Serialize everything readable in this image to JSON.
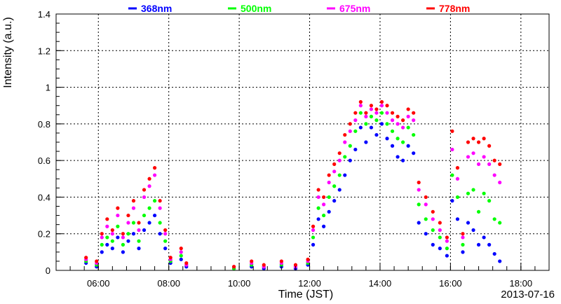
{
  "chart_data": {
    "type": "scatter",
    "title": "",
    "xlabel": "Time (JST)",
    "ylabel": "Intensity (a.u.)",
    "date_label": "2013-07-16",
    "x_range_hours": [
      4.8,
      18.8
    ],
    "x_ticks": [
      "06:00",
      "08:00",
      "10:00",
      "12:00",
      "14:00",
      "16:00",
      "18:00"
    ],
    "ylim": [
      0,
      1.4
    ],
    "y_ticks": [
      "0",
      "0.2",
      "0.4",
      "0.6",
      "0.8",
      "1",
      "1.2",
      "1.4"
    ],
    "grid": true,
    "legend_position": "top",
    "series": [
      {
        "name": "368nm",
        "color": "#0000ff",
        "points": [
          [
            5.65,
            0.04
          ],
          [
            5.95,
            0.02
          ],
          [
            6.1,
            0.1
          ],
          [
            6.25,
            0.14
          ],
          [
            6.4,
            0.12
          ],
          [
            6.55,
            0.18
          ],
          [
            6.7,
            0.1
          ],
          [
            6.85,
            0.16
          ],
          [
            7.0,
            0.2
          ],
          [
            7.15,
            0.12
          ],
          [
            7.3,
            0.22
          ],
          [
            7.45,
            0.26
          ],
          [
            7.6,
            0.3
          ],
          [
            7.75,
            0.2
          ],
          [
            7.9,
            0.12
          ],
          [
            8.05,
            0.04
          ],
          [
            8.35,
            0.06
          ],
          [
            8.5,
            0.02
          ],
          [
            9.85,
            0.01
          ],
          [
            10.35,
            0.02
          ],
          [
            10.7,
            0.01
          ],
          [
            11.2,
            0.02
          ],
          [
            11.6,
            0.01
          ],
          [
            11.95,
            0.03
          ],
          [
            12.1,
            0.14
          ],
          [
            12.25,
            0.28
          ],
          [
            12.4,
            0.24
          ],
          [
            12.55,
            0.32
          ],
          [
            12.7,
            0.38
          ],
          [
            12.85,
            0.44
          ],
          [
            13.0,
            0.52
          ],
          [
            13.15,
            0.6
          ],
          [
            13.3,
            0.66
          ],
          [
            13.45,
            0.78
          ],
          [
            13.6,
            0.7
          ],
          [
            13.75,
            0.78
          ],
          [
            13.9,
            0.74
          ],
          [
            14.05,
            0.8
          ],
          [
            14.2,
            0.72
          ],
          [
            14.35,
            0.68
          ],
          [
            14.5,
            0.62
          ],
          [
            14.65,
            0.6
          ],
          [
            14.8,
            0.68
          ],
          [
            14.95,
            0.64
          ],
          [
            15.1,
            0.26
          ],
          [
            15.3,
            0.2
          ],
          [
            15.5,
            0.14
          ],
          [
            15.7,
            0.12
          ],
          [
            15.9,
            0.08
          ],
          [
            16.05,
            0.38
          ],
          [
            16.2,
            0.28
          ],
          [
            16.35,
            0.1
          ],
          [
            16.5,
            0.26
          ],
          [
            16.65,
            0.22
          ],
          [
            16.8,
            0.14
          ],
          [
            16.95,
            0.18
          ],
          [
            17.1,
            0.14
          ],
          [
            17.25,
            0.09
          ],
          [
            17.4,
            0.05
          ]
        ]
      },
      {
        "name": "500nm",
        "color": "#00ff00",
        "points": [
          [
            5.65,
            0.05
          ],
          [
            5.95,
            0.03
          ],
          [
            6.1,
            0.14
          ],
          [
            6.25,
            0.18
          ],
          [
            6.4,
            0.16
          ],
          [
            6.55,
            0.24
          ],
          [
            6.7,
            0.14
          ],
          [
            6.85,
            0.2
          ],
          [
            7.0,
            0.26
          ],
          [
            7.15,
            0.16
          ],
          [
            7.3,
            0.3
          ],
          [
            7.45,
            0.34
          ],
          [
            7.6,
            0.38
          ],
          [
            7.75,
            0.26
          ],
          [
            7.9,
            0.16
          ],
          [
            8.05,
            0.05
          ],
          [
            8.35,
            0.08
          ],
          [
            8.5,
            0.03
          ],
          [
            9.85,
            0.01
          ],
          [
            10.35,
            0.03
          ],
          [
            10.7,
            0.02
          ],
          [
            11.2,
            0.03
          ],
          [
            11.6,
            0.02
          ],
          [
            11.95,
            0.04
          ],
          [
            12.1,
            0.18
          ],
          [
            12.25,
            0.34
          ],
          [
            12.4,
            0.3
          ],
          [
            12.55,
            0.4
          ],
          [
            12.7,
            0.46
          ],
          [
            12.85,
            0.52
          ],
          [
            13.0,
            0.62
          ],
          [
            13.15,
            0.68
          ],
          [
            13.3,
            0.76
          ],
          [
            13.45,
            0.86
          ],
          [
            13.6,
            0.8
          ],
          [
            13.75,
            0.84
          ],
          [
            13.9,
            0.82
          ],
          [
            14.05,
            0.86
          ],
          [
            14.2,
            0.8
          ],
          [
            14.35,
            0.76
          ],
          [
            14.5,
            0.72
          ],
          [
            14.65,
            0.7
          ],
          [
            14.8,
            0.78
          ],
          [
            14.95,
            0.74
          ],
          [
            15.1,
            0.36
          ],
          [
            15.3,
            0.28
          ],
          [
            15.5,
            0.22
          ],
          [
            15.7,
            0.18
          ],
          [
            15.9,
            0.12
          ],
          [
            16.05,
            0.52
          ],
          [
            16.2,
            0.4
          ],
          [
            16.35,
            0.14
          ],
          [
            16.5,
            0.42
          ],
          [
            16.65,
            0.44
          ],
          [
            16.8,
            0.32
          ],
          [
            16.95,
            0.42
          ],
          [
            17.1,
            0.38
          ],
          [
            17.25,
            0.28
          ],
          [
            17.4,
            0.26
          ]
        ]
      },
      {
        "name": "675nm",
        "color": "#ff00ff",
        "points": [
          [
            5.65,
            0.06
          ],
          [
            5.95,
            0.04
          ],
          [
            6.1,
            0.18
          ],
          [
            6.25,
            0.24
          ],
          [
            6.4,
            0.2
          ],
          [
            6.55,
            0.3
          ],
          [
            6.7,
            0.18
          ],
          [
            6.85,
            0.26
          ],
          [
            7.0,
            0.34
          ],
          [
            7.15,
            0.22
          ],
          [
            7.3,
            0.4
          ],
          [
            7.45,
            0.46
          ],
          [
            7.6,
            0.52
          ],
          [
            7.75,
            0.34
          ],
          [
            7.9,
            0.2
          ],
          [
            8.05,
            0.06
          ],
          [
            8.35,
            0.1
          ],
          [
            8.5,
            0.03
          ],
          [
            9.85,
            0.02
          ],
          [
            10.35,
            0.04
          ],
          [
            10.7,
            0.02
          ],
          [
            11.2,
            0.04
          ],
          [
            11.6,
            0.02
          ],
          [
            11.95,
            0.05
          ],
          [
            12.1,
            0.22
          ],
          [
            12.25,
            0.4
          ],
          [
            12.4,
            0.36
          ],
          [
            12.55,
            0.48
          ],
          [
            12.7,
            0.54
          ],
          [
            12.85,
            0.6
          ],
          [
            13.0,
            0.7
          ],
          [
            13.15,
            0.76
          ],
          [
            13.3,
            0.82
          ],
          [
            13.45,
            0.9
          ],
          [
            13.6,
            0.84
          ],
          [
            13.75,
            0.88
          ],
          [
            13.9,
            0.86
          ],
          [
            14.05,
            0.9
          ],
          [
            14.2,
            0.86
          ],
          [
            14.35,
            0.82
          ],
          [
            14.5,
            0.8
          ],
          [
            14.65,
            0.78
          ],
          [
            14.8,
            0.84
          ],
          [
            14.95,
            0.82
          ],
          [
            15.1,
            0.44
          ],
          [
            15.3,
            0.36
          ],
          [
            15.5,
            0.28
          ],
          [
            15.7,
            0.22
          ],
          [
            15.9,
            0.16
          ],
          [
            16.05,
            0.66
          ],
          [
            16.2,
            0.5
          ],
          [
            16.35,
            0.18
          ],
          [
            16.5,
            0.62
          ],
          [
            16.65,
            0.64
          ],
          [
            16.8,
            0.58
          ],
          [
            16.95,
            0.62
          ],
          [
            17.1,
            0.58
          ],
          [
            17.25,
            0.52
          ],
          [
            17.4,
            0.48
          ]
        ]
      },
      {
        "name": "778nm",
        "color": "#ff0000",
        "points": [
          [
            5.65,
            0.07
          ],
          [
            5.95,
            0.05
          ],
          [
            6.1,
            0.2
          ],
          [
            6.25,
            0.28
          ],
          [
            6.4,
            0.22
          ],
          [
            6.55,
            0.34
          ],
          [
            6.7,
            0.2
          ],
          [
            6.85,
            0.3
          ],
          [
            7.0,
            0.38
          ],
          [
            7.15,
            0.26
          ],
          [
            7.3,
            0.44
          ],
          [
            7.45,
            0.5
          ],
          [
            7.6,
            0.56
          ],
          [
            7.75,
            0.38
          ],
          [
            7.9,
            0.22
          ],
          [
            8.05,
            0.07
          ],
          [
            8.35,
            0.12
          ],
          [
            8.5,
            0.04
          ],
          [
            9.85,
            0.02
          ],
          [
            10.35,
            0.05
          ],
          [
            10.7,
            0.03
          ],
          [
            11.2,
            0.05
          ],
          [
            11.6,
            0.03
          ],
          [
            11.95,
            0.06
          ],
          [
            12.1,
            0.24
          ],
          [
            12.25,
            0.44
          ],
          [
            12.4,
            0.4
          ],
          [
            12.55,
            0.52
          ],
          [
            12.7,
            0.58
          ],
          [
            12.85,
            0.64
          ],
          [
            13.0,
            0.74
          ],
          [
            13.15,
            0.8
          ],
          [
            13.3,
            0.86
          ],
          [
            13.45,
            0.92
          ],
          [
            13.6,
            0.86
          ],
          [
            13.75,
            0.9
          ],
          [
            13.9,
            0.88
          ],
          [
            14.05,
            0.92
          ],
          [
            14.2,
            0.9
          ],
          [
            14.35,
            0.86
          ],
          [
            14.5,
            0.84
          ],
          [
            14.65,
            0.82
          ],
          [
            14.8,
            0.88
          ],
          [
            14.95,
            0.86
          ],
          [
            15.1,
            0.48
          ],
          [
            15.3,
            0.4
          ],
          [
            15.5,
            0.32
          ],
          [
            15.7,
            0.26
          ],
          [
            15.9,
            0.18
          ],
          [
            16.05,
            0.76
          ],
          [
            16.2,
            0.56
          ],
          [
            16.35,
            0.2
          ],
          [
            16.5,
            0.7
          ],
          [
            16.65,
            0.72
          ],
          [
            16.8,
            0.7
          ],
          [
            16.95,
            0.72
          ],
          [
            17.1,
            0.68
          ],
          [
            17.25,
            0.6
          ],
          [
            17.4,
            0.58
          ]
        ]
      }
    ]
  }
}
